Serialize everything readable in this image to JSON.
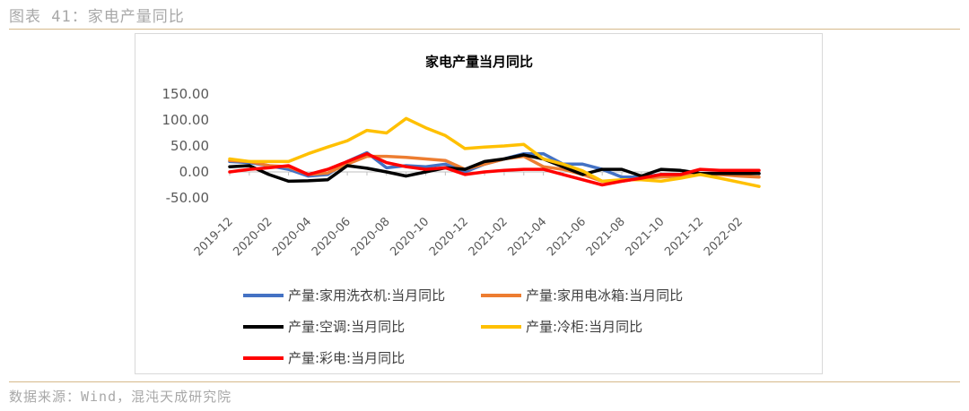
{
  "page": {
    "figure_title": "图表 41：家电产量同比",
    "source": "数据来源：Wind，混沌天成研究院"
  },
  "chart_data": {
    "type": "line",
    "title": "家电产量当月同比",
    "xlabel": "",
    "ylabel": "",
    "ylim": [
      -50,
      150
    ],
    "yticks": [
      "150.00",
      "100.00",
      "50.00",
      "0.00",
      "-50.00"
    ],
    "x": [
      "2019-12",
      "2020-01",
      "2020-02",
      "2020-03",
      "2020-04",
      "2020-05",
      "2020-06",
      "2020-07",
      "2020-08",
      "2020-09",
      "2020-10",
      "2020-11",
      "2020-12",
      "2021-01",
      "2021-02",
      "2021-03",
      "2021-04",
      "2021-05",
      "2021-06",
      "2021-07",
      "2021-08",
      "2021-09",
      "2021-10",
      "2021-11",
      "2021-12",
      "2022-01",
      "2022-02",
      "2022-03"
    ],
    "xtick_labels": [
      "2019-12",
      "2020-02",
      "2020-04",
      "2020-06",
      "2020-08",
      "2020-10",
      "2020-12",
      "2021-02",
      "2021-04",
      "2021-06",
      "2021-08",
      "2021-10",
      "2021-12",
      "2022-02"
    ],
    "legend_position": "bottom",
    "series": [
      {
        "name": "产量:家用洗衣机:当月同比",
        "color": "#4472C4",
        "values": [
          20,
          18,
          12,
          5,
          -8,
          -5,
          20,
          37,
          8,
          12,
          10,
          15,
          0,
          15,
          25,
          35,
          35,
          15,
          15,
          5,
          -10,
          -10,
          -5,
          -5,
          -3,
          -3,
          -3,
          -3
        ]
      },
      {
        "name": "产量:家用电冰箱:当月同比",
        "color": "#ED7D31",
        "values": [
          22,
          20,
          12,
          10,
          -5,
          -2,
          15,
          30,
          30,
          28,
          25,
          22,
          5,
          15,
          25,
          30,
          10,
          5,
          -5,
          -18,
          -18,
          -12,
          -10,
          -8,
          -5,
          -5,
          -8,
          -10
        ]
      },
      {
        "name": "产量:空调:当月同比",
        "color": "#000000",
        "values": [
          10,
          12,
          -5,
          -18,
          -17,
          -15,
          12,
          7,
          0,
          -8,
          0,
          8,
          5,
          20,
          25,
          33,
          25,
          10,
          -5,
          5,
          5,
          -8,
          5,
          3,
          -3,
          -3,
          -3,
          -3
        ]
      },
      {
        "name": "产量:冷柜:当月同比",
        "color": "#FFC000",
        "values": [
          25,
          20,
          20,
          20,
          35,
          48,
          60,
          80,
          75,
          103,
          85,
          70,
          45,
          48,
          50,
          53,
          25,
          15,
          2,
          -18,
          -15,
          -15,
          -18,
          -12,
          -5,
          -12,
          -20,
          -28
        ]
      },
      {
        "name": "产量:彩电:当月同比",
        "color": "#FF0000",
        "values": [
          0,
          5,
          8,
          12,
          -5,
          5,
          20,
          35,
          18,
          10,
          5,
          8,
          -5,
          0,
          3,
          5,
          5,
          -5,
          -15,
          -25,
          -18,
          -12,
          -5,
          -5,
          5,
          3,
          3,
          3
        ]
      }
    ]
  }
}
